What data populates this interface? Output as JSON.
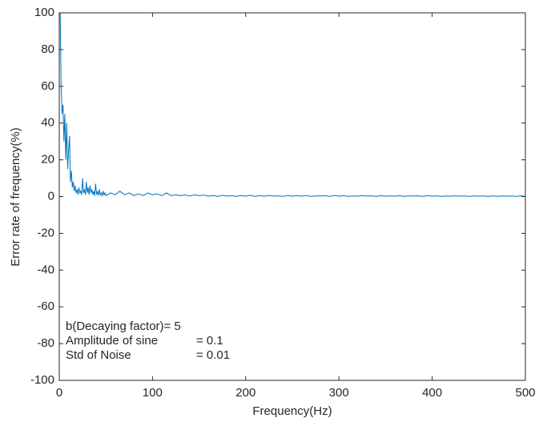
{
  "chart_data": {
    "type": "line",
    "xlabel": "Frequency(Hz)",
    "ylabel": "Error rate of frequency(%)",
    "annotations": [
      [
        "b(Decaying factor)= 5"
      ],
      [
        "Amplitude of sine",
        "= 0.1"
      ],
      [
        "Std of Noise",
        "= 0.01"
      ]
    ],
    "xlim": [
      0,
      500
    ],
    "xticks": [
      0,
      100,
      200,
      300,
      400,
      500
    ],
    "ylim": [
      -100,
      100
    ],
    "yticks": [
      -100,
      -80,
      -60,
      -40,
      -20,
      0,
      20,
      40,
      60,
      80,
      100
    ],
    "x": [
      1,
      2,
      3,
      4,
      5,
      6,
      7,
      8,
      9,
      10,
      11,
      12,
      13,
      14,
      15,
      16,
      17,
      18,
      19,
      20,
      21,
      22,
      23,
      24,
      25,
      26,
      27,
      28,
      29,
      30,
      31,
      32,
      33,
      34,
      35,
      36,
      37,
      38,
      39,
      40,
      41,
      42,
      43,
      44,
      45,
      46,
      47,
      48,
      49,
      50,
      55,
      60,
      65,
      70,
      75,
      80,
      85,
      90,
      95,
      100,
      105,
      110,
      115,
      120,
      125,
      130,
      135,
      140,
      145,
      150,
      155,
      160,
      165,
      170,
      175,
      180,
      185,
      190,
      195,
      200,
      205,
      210,
      215,
      220,
      225,
      230,
      235,
      240,
      245,
      250,
      255,
      260,
      265,
      270,
      275,
      280,
      285,
      290,
      295,
      300,
      305,
      310,
      315,
      320,
      325,
      330,
      335,
      340,
      345,
      350,
      355,
      360,
      365,
      370,
      375,
      380,
      385,
      390,
      395,
      400,
      405,
      410,
      415,
      420,
      425,
      430,
      435,
      440,
      445,
      450,
      455,
      460,
      465,
      470,
      475,
      480,
      485,
      490,
      495,
      500
    ],
    "series": [
      {
        "name": "Error rate",
        "color": "#0072bd",
        "values": [
          100,
          60,
          45,
          50,
          30,
          45,
          20,
          40,
          15,
          25,
          33,
          8,
          14,
          5,
          8,
          3,
          6,
          2,
          4,
          1,
          5,
          2,
          3,
          1,
          10,
          2,
          4,
          1,
          8,
          2,
          5,
          1,
          6,
          2,
          4,
          1,
          3,
          0.5,
          7,
          1,
          3,
          0.5,
          4,
          1,
          2,
          0.5,
          3,
          1,
          2,
          0.5,
          2,
          1,
          3,
          1,
          2,
          0.5,
          1.5,
          0.5,
          2,
          1,
          1.5,
          0.5,
          2,
          0.5,
          1,
          0.5,
          1,
          0.3,
          1,
          0.5,
          0.8,
          0.2,
          0.6,
          0.1,
          0.7,
          0.3,
          0.5,
          0.1,
          0.6,
          0.2,
          0.7,
          0.1,
          0.5,
          0.2,
          0.6,
          0.3,
          0.4,
          0.1,
          0.6,
          0.2,
          0.5,
          0.2,
          0.6,
          0.1,
          0.4,
          0.3,
          0.5,
          0.1,
          0.6,
          0.2,
          0.5,
          0.1,
          0.4,
          0.2,
          0.5,
          0.3,
          0.4,
          0.1,
          0.5,
          0.2,
          0.4,
          0.2,
          0.5,
          0.1,
          0.4,
          0.3,
          0.4,
          0.1,
          0.5,
          0.2,
          0.4,
          0.1,
          0.3,
          0.2,
          0.4,
          0.2,
          0.3,
          0.1,
          0.4,
          0.2,
          0.3,
          0.1,
          0.4,
          0.1,
          0.3,
          0.2,
          0.3,
          0.1,
          0.4,
          0.1
        ]
      }
    ]
  }
}
